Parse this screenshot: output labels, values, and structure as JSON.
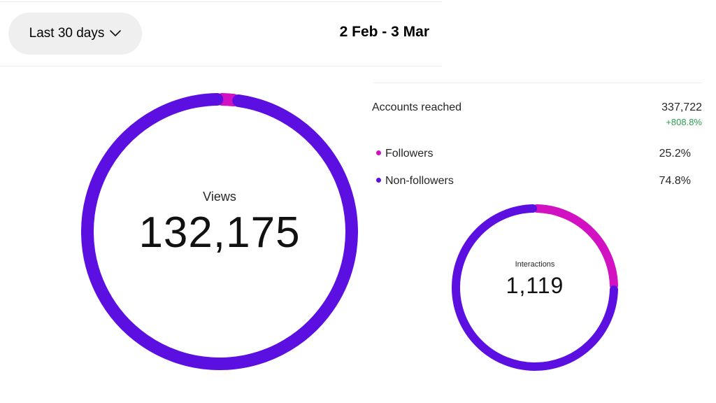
{
  "header": {
    "range_label": "Last 30 days",
    "date_range": "2 Feb - 3 Mar"
  },
  "views": {
    "label": "Views",
    "value": "132,175",
    "ring_segments": [
      {
        "name": "Followers",
        "fraction": 0.02,
        "color": "#d211c2"
      },
      {
        "name": "Non-followers",
        "fraction": 0.98,
        "color": "#5b0fe0"
      }
    ]
  },
  "accounts_reached": {
    "label": "Accounts reached",
    "value": "337,722",
    "change": "+808.8%",
    "breakdown": [
      {
        "label": "Followers",
        "value": "25.2%",
        "color": "#d211c2"
      },
      {
        "label": "Non-followers",
        "value": "74.8%",
        "color": "#5b0fe0"
      }
    ]
  },
  "interactions": {
    "label": "Interactions",
    "value": "1,119",
    "ring_segments": [
      {
        "name": "Followers",
        "fraction": 0.25,
        "color": "#d211c2"
      },
      {
        "name": "Non-followers",
        "fraction": 0.75,
        "color": "#5b0fe0"
      }
    ]
  },
  "colors": {
    "accent_purple": "#5b0fe0",
    "accent_magenta": "#d211c2",
    "positive_green": "#2e9e4f"
  }
}
